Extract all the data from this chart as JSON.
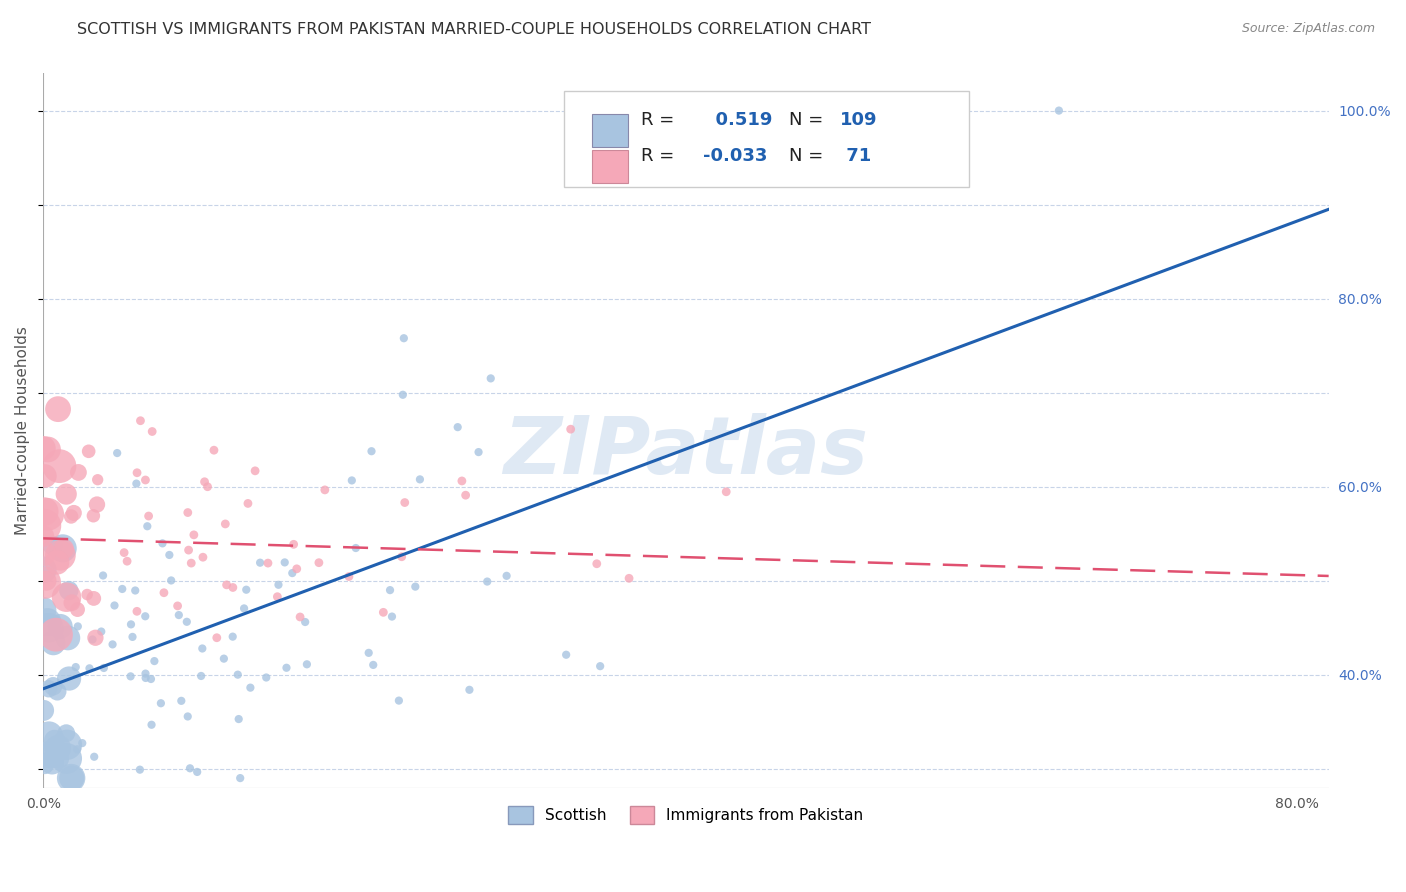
{
  "title": "SCOTTISH VS IMMIGRANTS FROM PAKISTAN MARRIED-COUPLE HOUSEHOLDS CORRELATION CHART",
  "source": "Source: ZipAtlas.com",
  "ylabel": "Married-couple Households",
  "xlim": [
    0.0,
    0.82
  ],
  "ylim": [
    0.28,
    1.04
  ],
  "R1": 0.519,
  "N1": 109,
  "R2": -0.033,
  "N2": 71,
  "blue_color": "#a8c4e0",
  "pink_color": "#f5a8b8",
  "blue_line_color": "#2060b0",
  "pink_line_color": "#e05070",
  "watermark": "ZIPatlas",
  "background_color": "#ffffff",
  "grid_color": "#c8d4e8",
  "legend_label1": "Scottish",
  "legend_label2": "Immigrants from Pakistan",
  "blue_line_x": [
    0.0,
    0.82
  ],
  "blue_line_y": [
    0.385,
    0.895
  ],
  "pink_line_x": [
    0.0,
    0.82
  ],
  "pink_line_y": [
    0.545,
    0.505
  ],
  "ytick_positions": [
    0.4,
    0.6,
    0.8,
    1.0
  ],
  "ytick_labels": [
    "40.0%",
    "60.0%",
    "80.0%",
    "100.0%"
  ]
}
